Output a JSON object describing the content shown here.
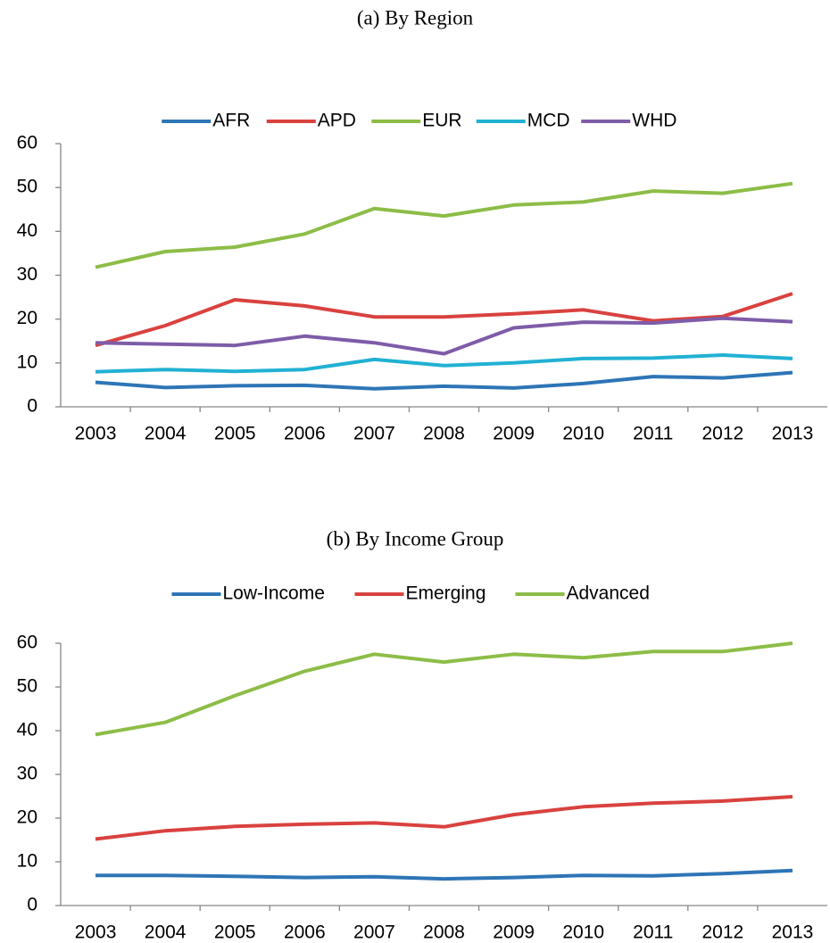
{
  "chart_data": [
    {
      "type": "line",
      "title": "(a) By Region",
      "categories": [
        "2003",
        "2004",
        "2005",
        "2006",
        "2007",
        "2008",
        "2009",
        "2010",
        "2011",
        "2012",
        "2013"
      ],
      "ylim": [
        0,
        60
      ],
      "yticks": [
        0,
        10,
        20,
        30,
        40,
        50,
        60
      ],
      "grid": false,
      "legend": "top",
      "series": [
        {
          "name": "AFR",
          "color": "#2e75b6",
          "values": [
            5.6,
            4.4,
            4.8,
            4.9,
            4.1,
            4.7,
            4.3,
            5.3,
            6.9,
            6.6,
            7.8
          ]
        },
        {
          "name": "APD",
          "color": "#d9423f",
          "values": [
            14,
            18.5,
            24.4,
            23,
            20.5,
            20.5,
            21.2,
            22.1,
            19.6,
            20.6,
            25.8
          ]
        },
        {
          "name": "EUR",
          "color": "#8dbd47",
          "values": [
            31.8,
            35.4,
            36.4,
            39.4,
            45.2,
            43.5,
            46,
            46.7,
            49.2,
            48.7,
            50.9
          ]
        },
        {
          "name": "MCD",
          "color": "#21b1d3",
          "values": [
            8,
            8.5,
            8.1,
            8.5,
            10.8,
            9.4,
            10,
            11,
            11.1,
            11.8,
            11
          ]
        },
        {
          "name": "WHD",
          "color": "#7e5ca8",
          "values": [
            14.6,
            14.3,
            14,
            16.1,
            14.6,
            12.1,
            18,
            19.3,
            19.1,
            20.2,
            19.4
          ]
        }
      ]
    },
    {
      "type": "line",
      "title": "(b) By Income Group",
      "categories": [
        "2003",
        "2004",
        "2005",
        "2006",
        "2007",
        "2008",
        "2009",
        "2010",
        "2011",
        "2012",
        "2013"
      ],
      "ylim": [
        0,
        60
      ],
      "yticks": [
        0,
        10,
        20,
        30,
        40,
        50,
        60
      ],
      "grid": false,
      "legend": "top",
      "series": [
        {
          "name": "Low-Income",
          "color": "#2e75b6",
          "values": [
            6.9,
            6.9,
            6.7,
            6.4,
            6.6,
            6.1,
            6.4,
            6.9,
            6.8,
            7.3,
            8
          ]
        },
        {
          "name": "Emerging",
          "color": "#d9423f",
          "values": [
            15.2,
            17.1,
            18.1,
            18.6,
            18.9,
            18,
            20.8,
            22.6,
            23.4,
            23.9,
            24.9
          ]
        },
        {
          "name": "Advanced",
          "color": "#8dbd47",
          "values": [
            39.1,
            41.9,
            48,
            53.6,
            57.5,
            55.7,
            57.5,
            56.7,
            58.1,
            58.1,
            60
          ]
        }
      ]
    }
  ]
}
